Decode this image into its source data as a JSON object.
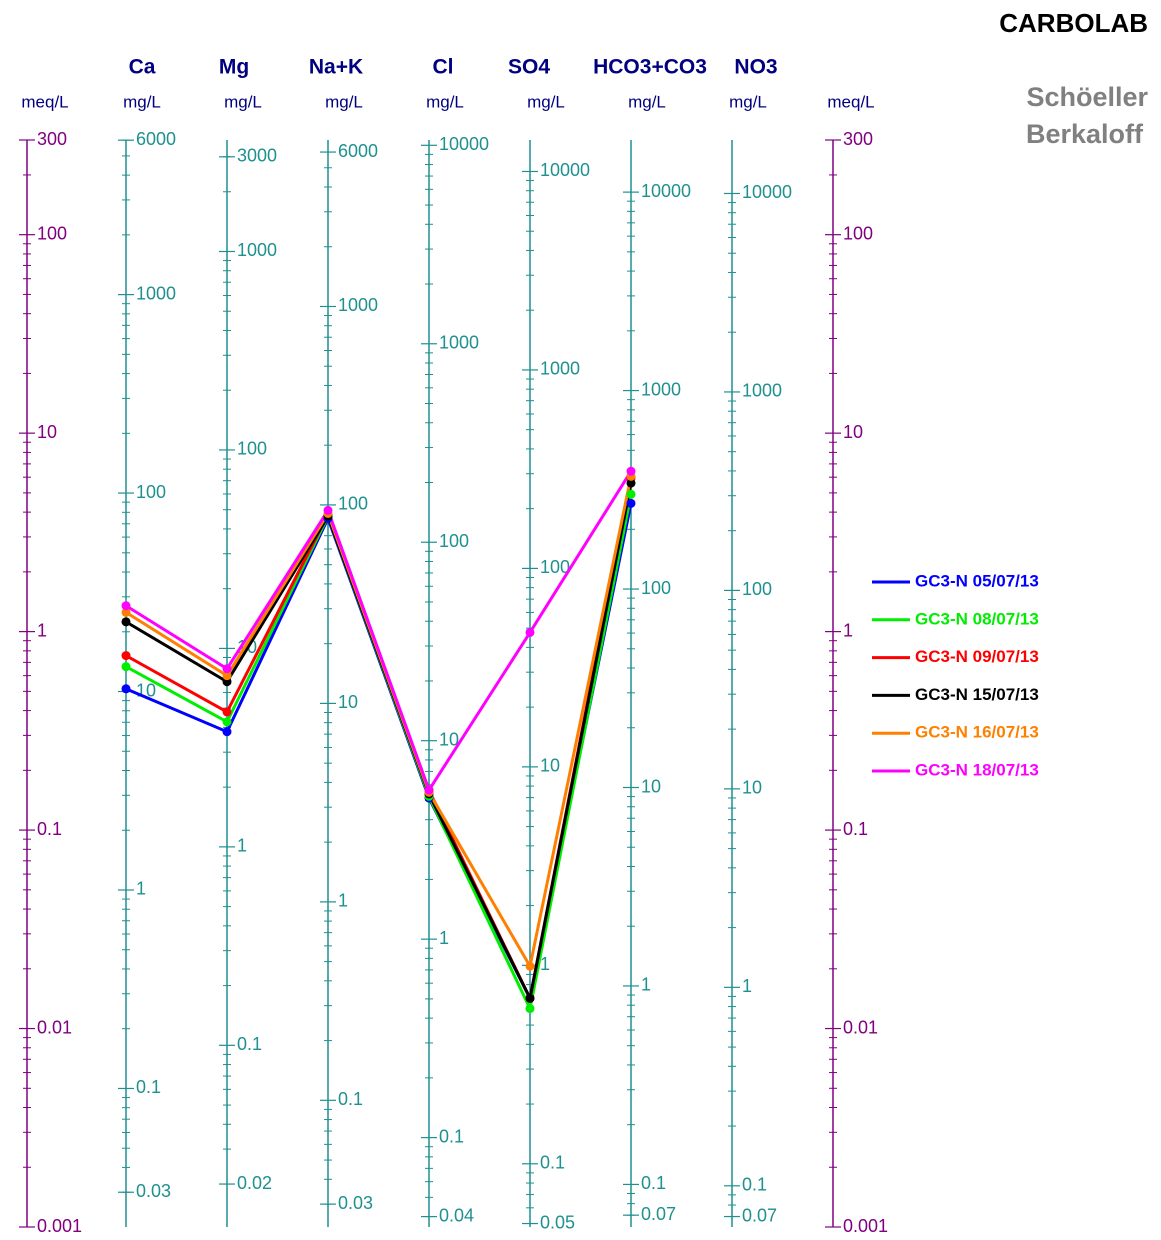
{
  "chart_data": {
    "type": "schoeller",
    "brand": "CARBOLAB",
    "title_lines": [
      "Schöeller",
      "Berkaloff"
    ],
    "log_scale": true,
    "meq_axis": {
      "unit": "meq/L",
      "color": "#800080",
      "ylim": [
        0.001,
        300
      ],
      "yticks": [
        300,
        100,
        10,
        1,
        0.1,
        0.01,
        0.001
      ]
    },
    "axes": [
      {
        "name": "Ca",
        "unit": "mg/L",
        "ylim": [
          0.02004,
          6012
        ],
        "yticks": [
          6000,
          1000,
          100,
          10,
          1,
          0.1,
          0.03
        ]
      },
      {
        "name": "Mg",
        "unit": "mg/L",
        "ylim": [
          0.01215,
          3646
        ],
        "yticks": [
          3000,
          1000,
          100,
          10,
          1,
          0.1,
          0.02
        ]
      },
      {
        "name": "Na+K",
        "unit": "mg/L",
        "ylim": [
          0.023,
          6900
        ],
        "yticks": [
          6000,
          1000,
          100,
          10,
          1,
          0.1,
          0.03
        ]
      },
      {
        "name": "Cl",
        "unit": "mg/L",
        "ylim": [
          0.03545,
          10635
        ],
        "yticks": [
          10000,
          1000,
          100,
          10,
          1,
          0.1,
          0.04
        ]
      },
      {
        "name": "SO4",
        "unit": "mg/L",
        "ylim": [
          0.04803,
          14409
        ],
        "yticks": [
          10000,
          1000,
          100,
          10,
          1,
          0.1,
          0.05
        ]
      },
      {
        "name": "HCO3+CO3",
        "unit": "mg/L",
        "ylim": [
          0.06102,
          18306
        ],
        "yticks": [
          10000,
          1000,
          100,
          10,
          1,
          0.1,
          0.07
        ]
      },
      {
        "name": "NO3",
        "unit": "mg/L",
        "ylim": [
          0.062,
          18600
        ],
        "yticks": [
          10000,
          1000,
          100,
          10,
          1,
          0.1,
          0.07
        ]
      }
    ],
    "axis_color": "#1f9090",
    "series": [
      {
        "name": "GC3-N 05/07/13",
        "color": "#0000ff",
        "values": [
          0.515,
          0.313,
          3.72,
          0.145,
          0.0142,
          4.43,
          null
        ]
      },
      {
        "name": "GC3-N 08/07/13",
        "color": "#00ee00",
        "values": [
          0.666,
          0.351,
          3.81,
          0.148,
          0.0126,
          4.92,
          null
        ]
      },
      {
        "name": "GC3-N 09/07/13",
        "color": "#ff0000",
        "values": [
          0.757,
          0.394,
          3.9,
          0.159,
          0.0142,
          5.93,
          null
        ]
      },
      {
        "name": "GC3-N 15/07/13",
        "color": "#000000",
        "values": [
          1.12,
          0.559,
          3.81,
          0.152,
          0.0142,
          5.6,
          null
        ]
      },
      {
        "name": "GC3-N 16/07/13",
        "color": "#ff8000",
        "values": [
          1.25,
          0.6,
          3.94,
          0.155,
          0.0206,
          6.06,
          null
        ]
      },
      {
        "name": "GC3-N 18/07/13",
        "color": "#ff00ff",
        "values": [
          1.35,
          0.65,
          4.08,
          0.159,
          0.99,
          6.43,
          null
        ]
      }
    ]
  }
}
